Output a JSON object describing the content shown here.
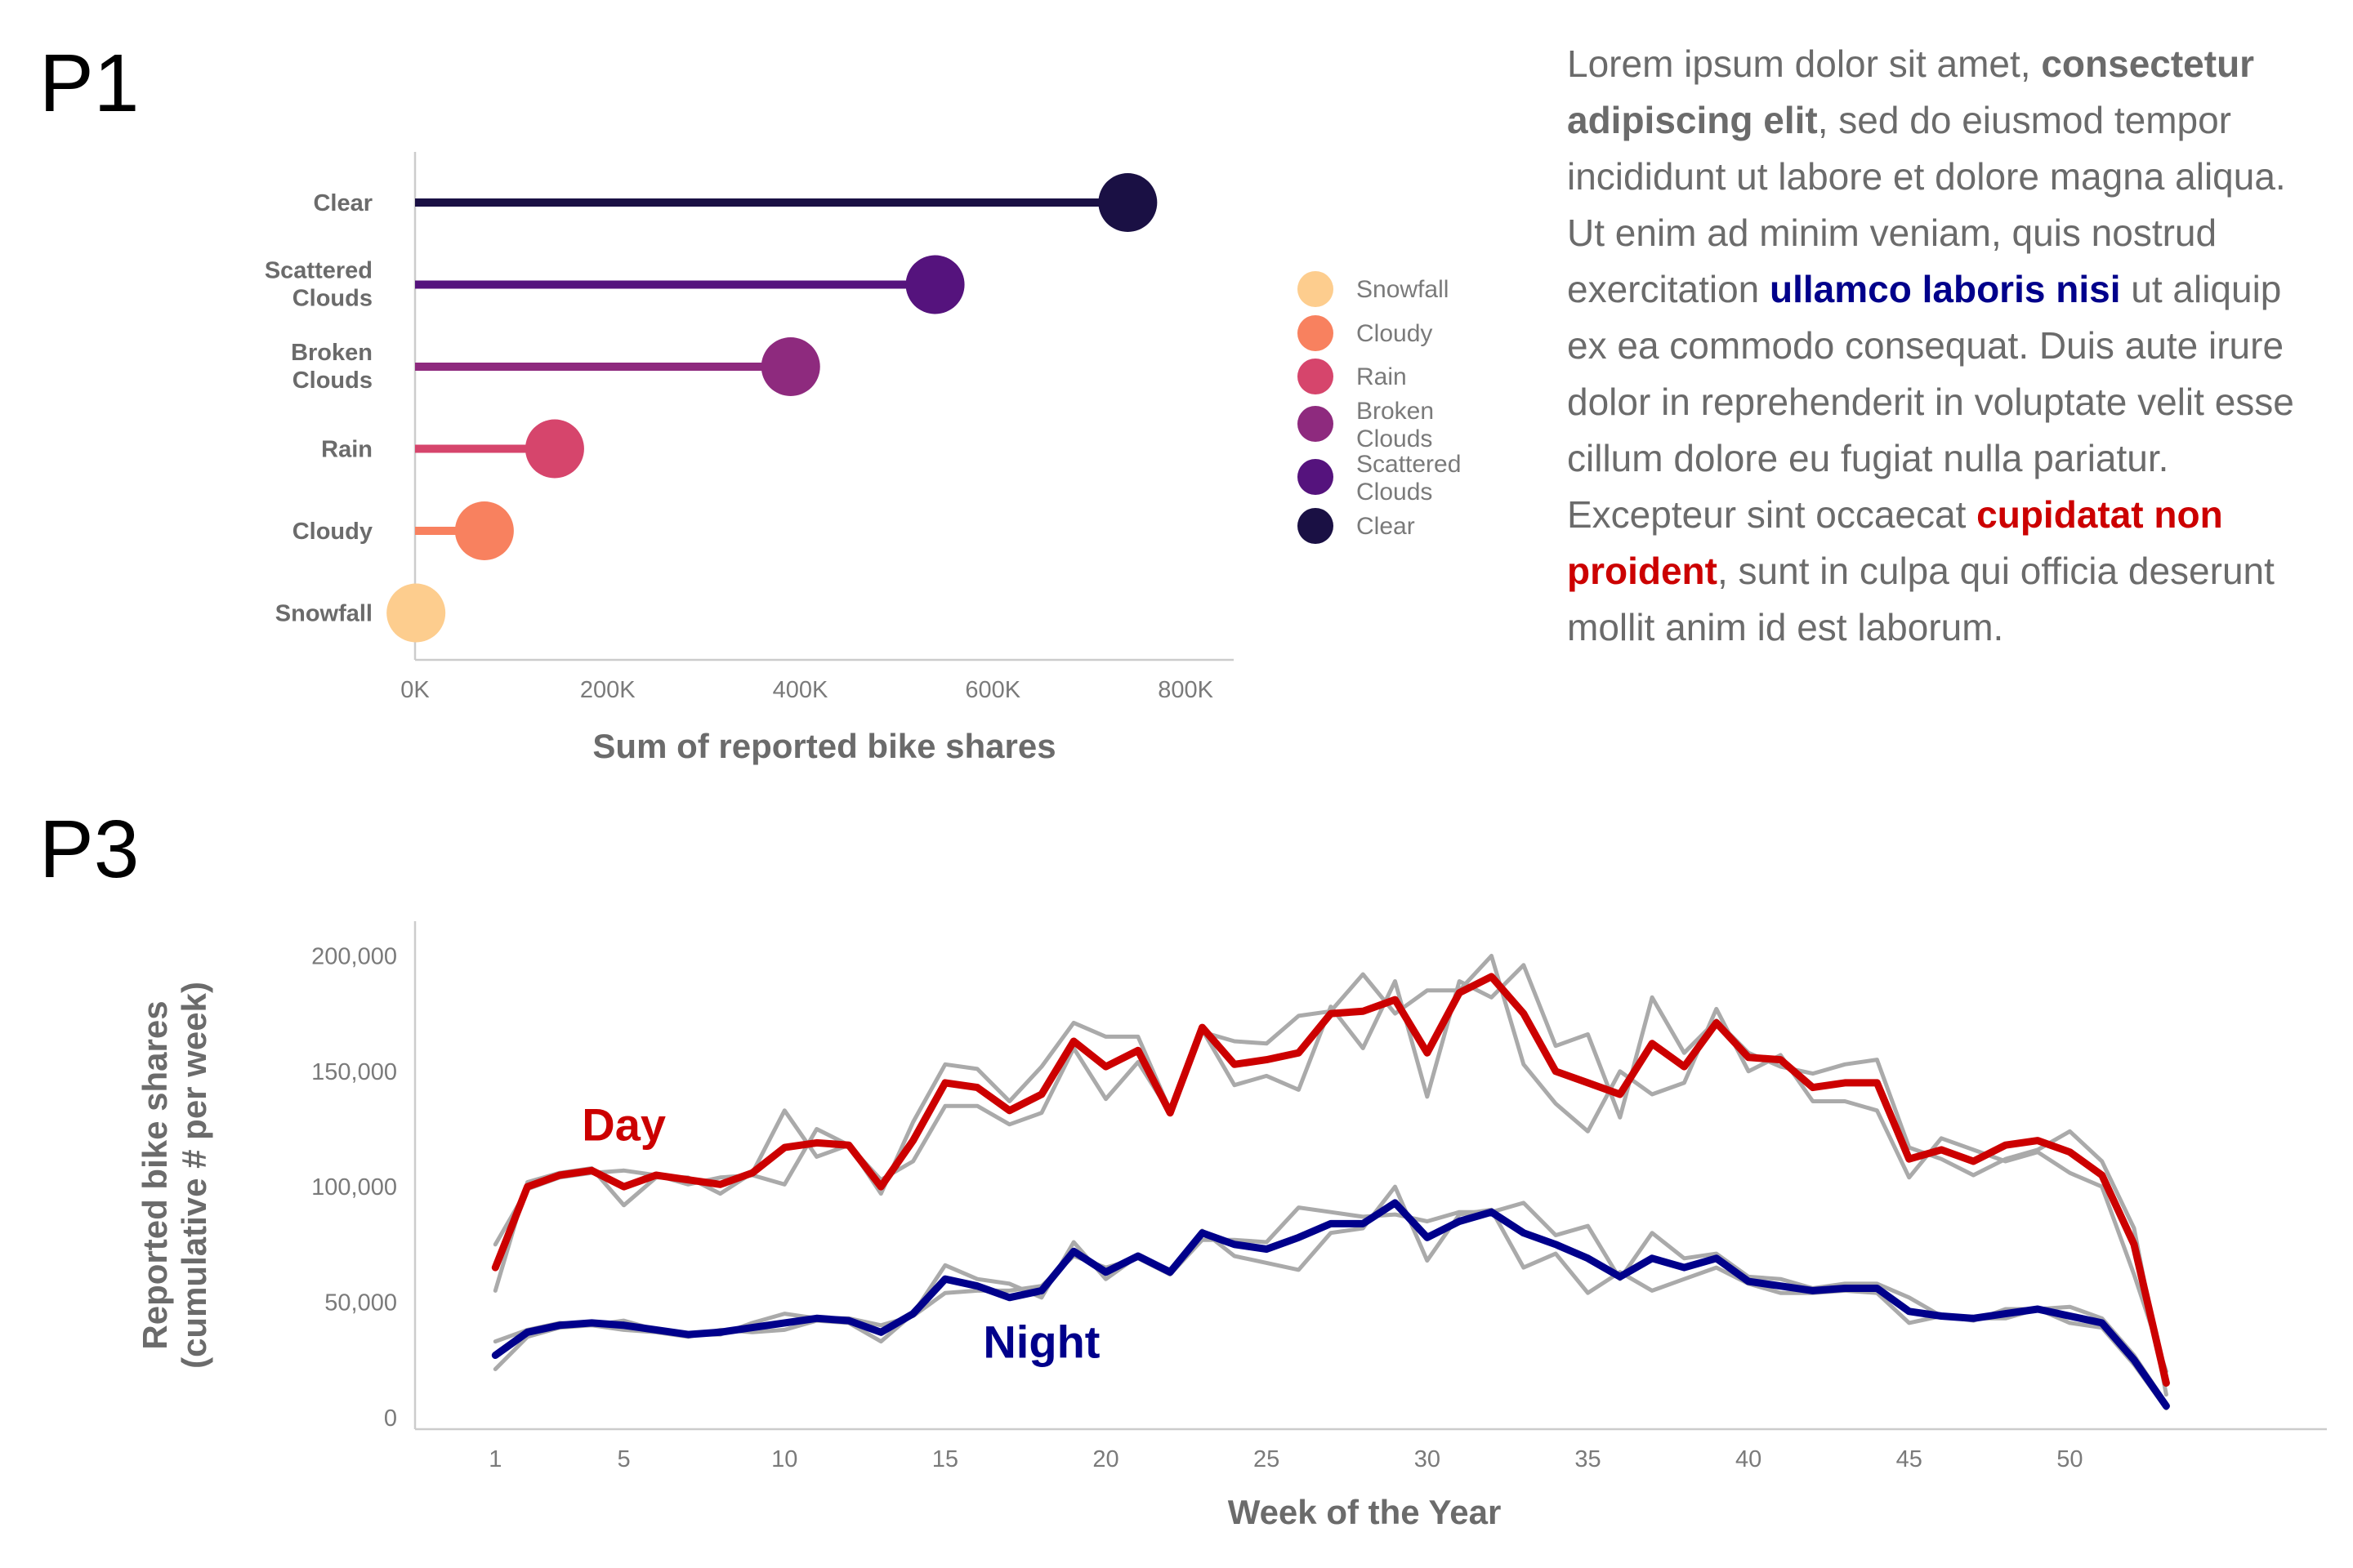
{
  "panels": {
    "p1": "P1",
    "p3": "P3"
  },
  "text_block": {
    "t1": "Lorem ipsum dolor sit amet, ",
    "b1": "consectetur adipiscing elit",
    "t2": ", sed do eiusmod tempor incididunt ut labore et dolore magna aliqua. Ut enim ad minim veniam, quis nostrud exercitation ",
    "b2": "ullamco laboris nisi",
    "t3": " ut aliquip ex ea commodo consequat. Duis aute irure dolor in reprehenderit in voluptate velit esse cillum dolore eu fugiat nulla pariatur. Excepteur sint occaecat ",
    "b3": "cupidatat non proident",
    "t4": ", sunt in culpa qui officia deserunt mollit anim id est laborum."
  },
  "chart_data": [
    {
      "type": "lollipop",
      "categories": [
        "Clear",
        "Scattered Clouds",
        "Broken Clouds",
        "Rain",
        "Cloudy",
        "Snowfall"
      ],
      "values": [
        740000,
        540000,
        390000,
        145000,
        72000,
        1000
      ],
      "colors": [
        "#1a1044",
        "#55137d",
        "#8e2a7e",
        "#d6456c",
        "#f8815f",
        "#fdcd8e"
      ],
      "xlabel": "Sum of reported bike shares",
      "xlim": [
        0,
        850000
      ],
      "xticks": [
        0,
        200000,
        400000,
        600000,
        800000
      ],
      "xtick_labels": [
        "0K",
        "200K",
        "400K",
        "600K",
        "800K"
      ],
      "legend": {
        "position": "right",
        "entries": [
          "Snowfall",
          "Cloudy",
          "Rain",
          "Broken Clouds",
          "Scattered Clouds",
          "Clear"
        ],
        "colors": [
          "#fdcd8e",
          "#f8815f",
          "#d6456c",
          "#8e2a7e",
          "#55137d",
          "#1a1044"
        ]
      }
    },
    {
      "type": "line",
      "xlabel": "Week of the Year",
      "ylabel": "Reported bike shares\n(cumulative # per week)",
      "xlim": [
        -1.5,
        58
      ],
      "ylim": [
        -5000,
        215000
      ],
      "xticks": [
        1,
        5,
        10,
        15,
        20,
        25,
        30,
        35,
        40,
        45,
        50
      ],
      "yticks": [
        0,
        50000,
        100000,
        150000,
        200000
      ],
      "ytick_labels": [
        "0",
        "50,000",
        "100,000",
        "150,000",
        "200,000"
      ],
      "annotations": [
        {
          "text": "Day",
          "x": 5,
          "y": 120000,
          "color": "#cc0000"
        },
        {
          "text": "Night",
          "x": 18,
          "y": 26000,
          "color": "#00008b"
        }
      ],
      "series": [
        {
          "name": "Day",
          "color": "#cc0000",
          "x": [
            1,
            2,
            3,
            4,
            5,
            6,
            7,
            8,
            9,
            10,
            11,
            12,
            13,
            14,
            15,
            16,
            17,
            18,
            19,
            20,
            21,
            22,
            23,
            24,
            25,
            26,
            27,
            28,
            29,
            30,
            31,
            32,
            33,
            34,
            35,
            36,
            37,
            38,
            39,
            40,
            41,
            42,
            43,
            44,
            45,
            46,
            47,
            48,
            49,
            50,
            51,
            52,
            53
          ],
          "y": [
            65000,
            100000,
            105000,
            107000,
            100000,
            105000,
            103000,
            101000,
            106000,
            117000,
            119000,
            118000,
            100000,
            120000,
            145000,
            143000,
            133000,
            140000,
            163000,
            152000,
            159000,
            132000,
            169000,
            153000,
            155000,
            158000,
            175000,
            176000,
            181000,
            158000,
            184000,
            191000,
            175000,
            150000,
            145000,
            140000,
            162000,
            152000,
            171000,
            156000,
            155000,
            143000,
            145000,
            145000,
            112000,
            116000,
            111000,
            118000,
            120000,
            115000,
            105000,
            75000,
            15000
          ]
        },
        {
          "name": "Night",
          "color": "#00008b",
          "x": [
            1,
            2,
            3,
            4,
            5,
            6,
            7,
            8,
            9,
            10,
            11,
            12,
            13,
            14,
            15,
            16,
            17,
            18,
            19,
            20,
            21,
            22,
            23,
            24,
            25,
            26,
            27,
            28,
            29,
            30,
            31,
            32,
            33,
            34,
            35,
            36,
            37,
            38,
            39,
            40,
            41,
            42,
            43,
            44,
            45,
            46,
            47,
            48,
            49,
            50,
            51,
            52,
            53
          ],
          "y": [
            27000,
            37000,
            40000,
            41000,
            40000,
            38000,
            36000,
            37000,
            39000,
            41000,
            43000,
            42000,
            37000,
            45000,
            60000,
            57000,
            52000,
            55000,
            72000,
            63000,
            70000,
            63000,
            80000,
            75000,
            73000,
            78000,
            84000,
            84000,
            93000,
            78000,
            85000,
            89000,
            80000,
            75000,
            69000,
            61000,
            69000,
            65000,
            69000,
            59000,
            57000,
            55000,
            56000,
            56000,
            46000,
            44000,
            43000,
            45000,
            47000,
            44000,
            41000,
            25000,
            5000
          ]
        },
        {
          "name": "",
          "color": "#aaaaaa",
          "x": [
            1,
            2,
            3,
            4,
            5,
            6,
            7,
            8,
            9,
            10,
            11,
            12,
            13,
            14,
            15,
            16,
            17,
            18,
            19,
            20,
            21,
            22,
            23,
            24,
            25,
            26,
            27,
            28,
            29,
            30,
            31,
            32,
            33,
            34,
            35,
            36,
            37,
            38,
            39,
            40,
            41,
            42,
            43,
            44,
            45,
            46,
            47,
            48,
            49,
            50,
            51,
            52,
            53
          ],
          "y": [
            55000,
            102000,
            106000,
            108000,
            92000,
            104000,
            104000,
            97000,
            106000,
            133000,
            113000,
            118000,
            97000,
            128000,
            153000,
            151000,
            137000,
            152000,
            171000,
            165000,
            165000,
            133000,
            167000,
            163000,
            162000,
            174000,
            176000,
            192000,
            175000,
            185000,
            185000,
            200000,
            153000,
            136000,
            124000,
            150000,
            140000,
            145000,
            177000,
            150000,
            157000,
            137000,
            137000,
            133000,
            104000,
            121000,
            116000,
            111000,
            115000,
            106000,
            100000,
            62000,
            20000
          ]
        },
        {
          "name": "",
          "color": "#aaaaaa",
          "x": [
            1,
            2,
            3,
            4,
            5,
            6,
            7,
            8,
            9,
            10,
            11,
            12,
            13,
            14,
            15,
            16,
            17,
            18,
            19,
            20,
            21,
            22,
            23,
            24,
            25,
            26,
            27,
            28,
            29,
            30,
            31,
            32,
            33,
            34,
            35,
            36,
            37,
            38,
            39,
            40,
            41,
            42,
            43,
            44,
            45,
            46,
            47,
            48,
            49,
            50,
            51,
            52,
            53
          ],
          "y": [
            75000,
            99000,
            104000,
            106000,
            107000,
            105000,
            101000,
            104000,
            105000,
            101000,
            125000,
            118000,
            103000,
            111000,
            135000,
            135000,
            127000,
            132000,
            160000,
            138000,
            154000,
            132000,
            168000,
            144000,
            148000,
            142000,
            178000,
            160000,
            189000,
            139000,
            189000,
            182000,
            196000,
            161000,
            166000,
            130000,
            182000,
            158000,
            172000,
            158000,
            152000,
            149000,
            153000,
            155000,
            117000,
            112000,
            105000,
            112000,
            116000,
            124000,
            111000,
            82000,
            10000
          ]
        },
        {
          "name": "",
          "color": "#aaaaaa",
          "x": [
            1,
            2,
            3,
            4,
            5,
            6,
            7,
            8,
            9,
            10,
            11,
            12,
            13,
            14,
            15,
            16,
            17,
            18,
            19,
            20,
            21,
            22,
            23,
            24,
            25,
            26,
            27,
            28,
            29,
            30,
            31,
            32,
            33,
            34,
            35,
            36,
            37,
            38,
            39,
            40,
            41,
            42,
            43,
            44,
            45,
            46,
            47,
            48,
            49,
            50,
            51,
            52,
            53
          ],
          "y": [
            21000,
            35000,
            39000,
            40000,
            38000,
            37000,
            35000,
            38000,
            37000,
            38000,
            42000,
            41000,
            33000,
            45000,
            66000,
            60000,
            58000,
            52000,
            76000,
            60000,
            70000,
            64000,
            81000,
            70000,
            67000,
            64000,
            80000,
            82000,
            100000,
            68000,
            88000,
            90000,
            65000,
            71000,
            54000,
            63000,
            55000,
            60000,
            65000,
            58000,
            54000,
            54000,
            55000,
            54000,
            41000,
            44000,
            43000,
            43000,
            47000,
            41000,
            39000,
            23000,
            4000
          ]
        },
        {
          "name": "",
          "color": "#aaaaaa",
          "x": [
            1,
            2,
            3,
            4,
            5,
            6,
            7,
            8,
            9,
            10,
            11,
            12,
            13,
            14,
            15,
            16,
            17,
            18,
            19,
            20,
            21,
            22,
            23,
            24,
            25,
            26,
            27,
            28,
            29,
            30,
            31,
            32,
            33,
            34,
            35,
            36,
            37,
            38,
            39,
            40,
            41,
            42,
            43,
            44,
            45,
            46,
            47,
            48,
            49,
            50,
            51,
            52,
            53
          ],
          "y": [
            33000,
            38000,
            41000,
            40000,
            42000,
            38000,
            36000,
            36000,
            41000,
            45000,
            43000,
            43000,
            40000,
            44000,
            54000,
            55000,
            55000,
            57000,
            70000,
            65000,
            69000,
            62000,
            77000,
            77000,
            76000,
            91000,
            89000,
            87000,
            88000,
            85000,
            89000,
            89000,
            93000,
            79000,
            83000,
            60000,
            80000,
            69000,
            71000,
            61000,
            60000,
            56000,
            58000,
            58000,
            52000,
            44000,
            42000,
            47000,
            47000,
            48000,
            43000,
            27000,
            6000
          ]
        }
      ]
    }
  ]
}
